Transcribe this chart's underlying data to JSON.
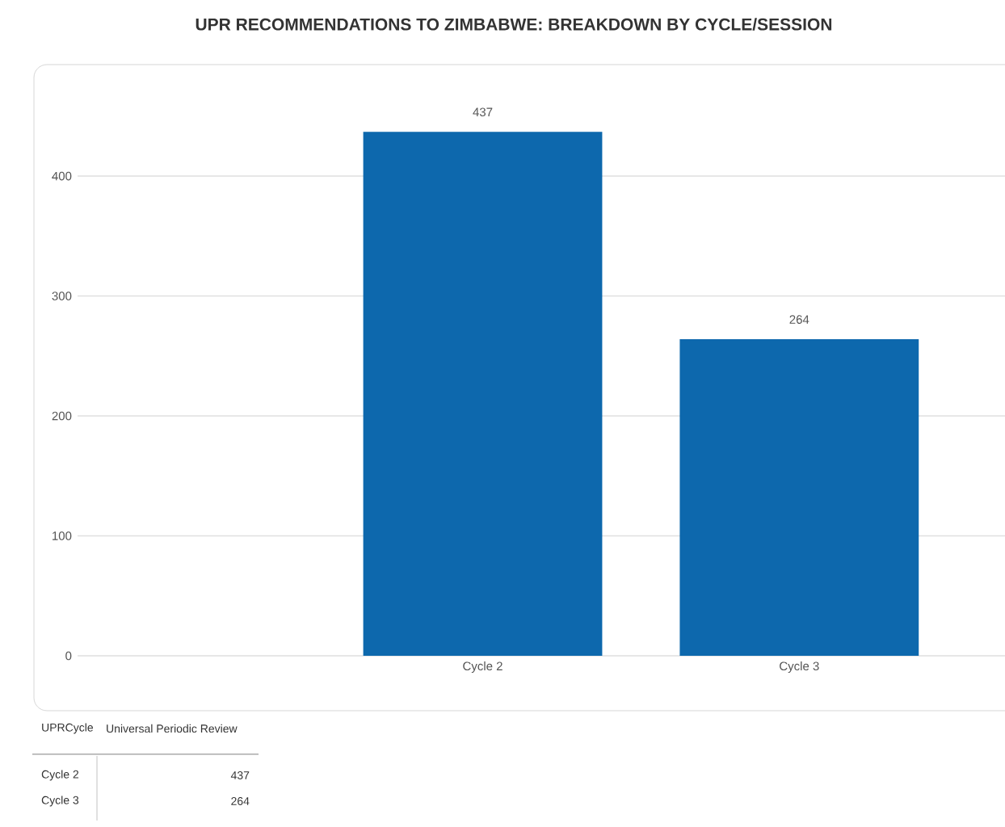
{
  "chart_data": {
    "type": "bar",
    "title": "UPR RECOMMENDATIONS TO ZIMBABWE: BREAKDOWN BY CYCLE/SESSION",
    "categories": [
      null,
      "Cycle 2",
      "Cycle 3"
    ],
    "values": [
      null,
      437,
      264
    ],
    "color": "#0d68ad",
    "value_labels": [
      null,
      "437",
      "264"
    ],
    "ylim": [
      0,
      493
    ],
    "yticks": [
      0,
      100,
      200,
      300,
      400
    ],
    "grid": "y",
    "annotations": [
      "UPRCycle",
      "Universal Periodic Review"
    ]
  }
}
